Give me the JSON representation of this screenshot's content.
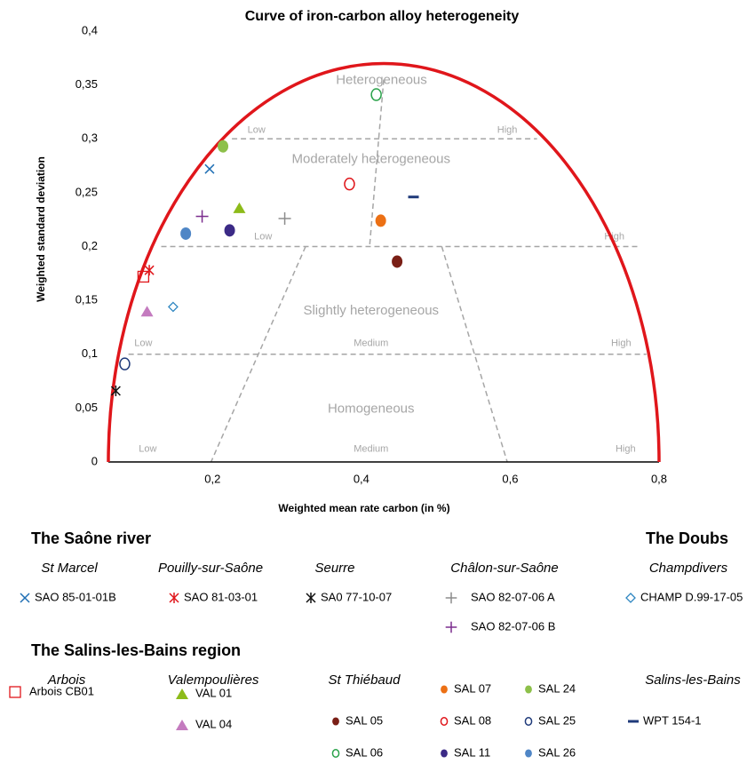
{
  "chart_data": {
    "type": "scatter",
    "title": "Curve of iron-carbon alloy heterogeneity",
    "xlabel": "Weighted mean rate carbon  (in  %)",
    "ylabel": "Weighted standard deviation",
    "xlim": [
      0.06,
      0.8
    ],
    "ylim": [
      0,
      0.4
    ],
    "xticks": [
      {
        "value": 0.2,
        "label": "0,2"
      },
      {
        "value": 0.4,
        "label": "0,4"
      },
      {
        "value": 0.6,
        "label": "0,6"
      },
      {
        "value": 0.8,
        "label": "0,8"
      }
    ],
    "yticks": [
      0,
      {
        "value": 0.05,
        "label": "0,05"
      },
      {
        "value": 0.1,
        "label": "0,1"
      },
      {
        "value": 0.15,
        "label": "0,15"
      },
      {
        "value": 0.2,
        "label": "0,2"
      },
      {
        "value": 0.25,
        "label": "0,25"
      },
      {
        "value": 0.3,
        "label": "0,3"
      },
      {
        "value": 0.35,
        "label": "0,35"
      },
      {
        "value": 0.4,
        "label": "0,4"
      }
    ],
    "curve": {
      "color": "#e0161b",
      "center": 0.43,
      "half_width": 0.37,
      "height": 0.37
    },
    "zone_lines": {
      "color": "#a6a6a6",
      "lines": [
        {
          "x": [
            0.226,
            0.636
          ],
          "y": [
            0.3,
            0.3
          ]
        },
        {
          "x": [
            0.131,
            0.775
          ],
          "y": [
            0.2,
            0.2
          ]
        },
        {
          "x": [
            0.087,
            0.783
          ],
          "y": [
            0.1,
            0.1
          ]
        },
        {
          "x": [
            0.43,
            0.411
          ],
          "y": [
            0.355,
            0.2
          ]
        },
        {
          "x": [
            0.325,
            0.198
          ],
          "y": [
            0.2,
            0
          ]
        },
        {
          "x": [
            0.508,
            0.596
          ],
          "y": [
            0.2,
            0
          ]
        }
      ]
    },
    "annotations": [
      {
        "text": "Heterogeneous",
        "x": 0.427,
        "y": 0.354,
        "size": "large"
      },
      {
        "text": "Moderately heterogeneous",
        "x": 0.413,
        "y": 0.281,
        "size": "large"
      },
      {
        "text": "Slightly heterogeneous",
        "x": 0.413,
        "y": 0.14,
        "size": "large"
      },
      {
        "text": "Homogeneous",
        "x": 0.413,
        "y": 0.049,
        "size": "large"
      },
      {
        "text": "Low",
        "x": 0.259,
        "y": 0.308,
        "size": "small"
      },
      {
        "text": "High",
        "x": 0.596,
        "y": 0.308,
        "size": "small"
      },
      {
        "text": "Low",
        "x": 0.268,
        "y": 0.209,
        "size": "small"
      },
      {
        "text": "High",
        "x": 0.74,
        "y": 0.209,
        "size": "small"
      },
      {
        "text": "Low",
        "x": 0.107,
        "y": 0.11,
        "size": "small"
      },
      {
        "text": "Medium",
        "x": 0.413,
        "y": 0.11,
        "size": "small"
      },
      {
        "text": "High",
        "x": 0.749,
        "y": 0.11,
        "size": "small"
      },
      {
        "text": "Low",
        "x": 0.113,
        "y": 0.012,
        "size": "small"
      },
      {
        "text": "Medium",
        "x": 0.413,
        "y": 0.012,
        "size": "small"
      },
      {
        "text": "High",
        "x": 0.755,
        "y": 0.012,
        "size": "small"
      }
    ],
    "groups": [
      {
        "title": "The Saône river",
        "sites": [
          {
            "name": "St Marcel",
            "series": [
              {
                "name": "SAO 85-01-01B",
                "marker": "x",
                "color": "#1f6fb4",
                "x": [
                  0.196
                ],
                "values": [
                  0.272
                ]
              }
            ]
          },
          {
            "name": "Pouilly-sur-Saône",
            "series": [
              {
                "name": "SAO 81-03-01",
                "marker": "asterisk",
                "color": "#e0161b",
                "x": [
                  0.115
                ],
                "values": [
                  0.178
                ]
              }
            ]
          },
          {
            "name": "Seurre",
            "series": [
              {
                "name": "SA0 77-10-07",
                "marker": "asterisk",
                "color": "#111111",
                "x": [
                  0.07
                ],
                "values": [
                  0.066
                ]
              }
            ]
          },
          {
            "name": "Châlon-sur-Saône",
            "series": [
              {
                "name": "SAO 82-07-06 A",
                "marker": "plus",
                "color": "#8c8c8c",
                "x": [
                  0.297
                ],
                "values": [
                  0.226
                ]
              },
              {
                "name": "SAO 82-07-06 B",
                "marker": "plus",
                "color": "#7b2d8e",
                "x": [
                  0.186
                ],
                "values": [
                  0.228
                ]
              }
            ]
          }
        ]
      },
      {
        "title": "The Doubs",
        "sites": [
          {
            "name": "Champdivers",
            "series": [
              {
                "name": "CHAMP D.99-17-05",
                "marker": "diamond",
                "color": "#2e86c1",
                "x": [
                  0.147
                ],
                "values": [
                  0.144
                ]
              }
            ]
          }
        ]
      },
      {
        "title": "The Salins-les-Bains region",
        "sites": [
          {
            "name": "Arbois",
            "series": [
              {
                "name": "Arbois CB01",
                "marker": "square",
                "color": "#e0161b",
                "x": [
                  0.107
                ],
                "values": [
                  0.172
                ]
              }
            ]
          },
          {
            "name": "Valempoulières",
            "series": [
              {
                "name": "VAL 01",
                "marker": "triangle",
                "color": "#8dbb1a",
                "x": [
                  0.236
                ],
                "values": [
                  0.236
                ]
              },
              {
                "name": "VAL 04",
                "marker": "triangle",
                "color": "#c47bbf",
                "x": [
                  0.112
                ],
                "values": [
                  0.14
                ]
              }
            ]
          },
          {
            "name": "St Thiébaud",
            "series": [
              {
                "name": "SAL 05",
                "marker": "dot",
                "color": "#7a1f16",
                "x": [
                  0.448
                ],
                "values": [
                  0.186
                ]
              },
              {
                "name": "SAL 06",
                "marker": "circle",
                "color": "#2aa24a",
                "x": [
                  0.42
                ],
                "values": [
                  0.341
                ]
              },
              {
                "name": "SAL 07",
                "marker": "dot",
                "color": "#ec7014",
                "x": [
                  0.426
                ],
                "values": [
                  0.224
                ]
              },
              {
                "name": "SAL 08",
                "marker": "circle",
                "color": "#e0161b",
                "x": [
                  0.384
                ],
                "values": [
                  0.258
                ]
              },
              {
                "name": "SAL 11",
                "marker": "dot",
                "color": "#3b2a86",
                "x": [
                  0.223
                ],
                "values": [
                  0.215
                ]
              },
              {
                "name": "SAL 24",
                "marker": "dot",
                "color": "#8dc04a",
                "x": [
                  0.214
                ],
                "values": [
                  0.293
                ]
              },
              {
                "name": "SAL 25",
                "marker": "circle",
                "color": "#1f3a7a",
                "x": [
                  0.082
                ],
                "values": [
                  0.091
                ]
              },
              {
                "name": "SAL 26",
                "marker": "dot",
                "color": "#4f86c6",
                "x": [
                  0.164
                ],
                "values": [
                  0.212
                ]
              }
            ]
          },
          {
            "name": "Salins-les-Bains",
            "series": [
              {
                "name": "WPT 154-1",
                "marker": "dash",
                "color": "#1f3a7a",
                "x": [
                  0.47
                ],
                "values": [
                  0.246
                ]
              }
            ]
          }
        ]
      }
    ]
  }
}
